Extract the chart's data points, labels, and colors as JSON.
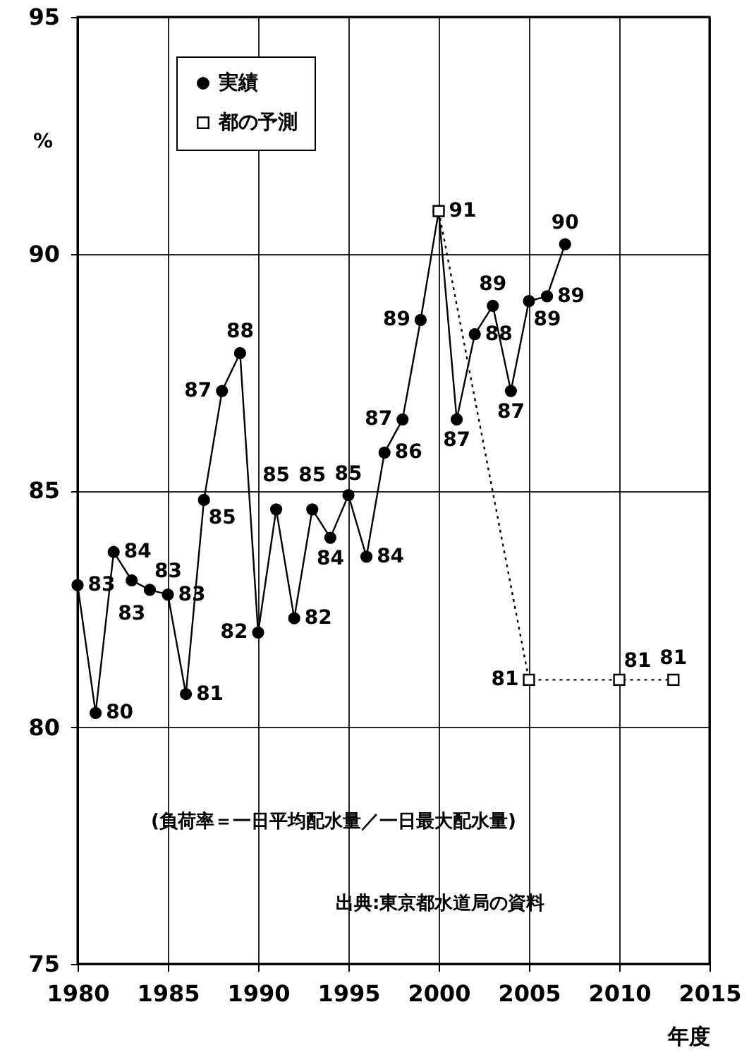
{
  "chart_data": {
    "type": "line",
    "ylabel": "%",
    "xlabel": "年度",
    "x": [
      1980,
      1981,
      1982,
      1983,
      1984,
      1985,
      1986,
      1987,
      1988,
      1989,
      1990,
      1991,
      1992,
      1993,
      1994,
      1995,
      1996,
      1997,
      1998,
      1999,
      2000,
      2001,
      2002,
      2003,
      2004,
      2005,
      2006,
      2007
    ],
    "series": [
      {
        "name": "実績",
        "color": "#000000",
        "marker": "circle",
        "line_style": "solid",
        "values": [
          83.0,
          80.3,
          83.7,
          83.1,
          82.9,
          82.8,
          80.7,
          84.8,
          87.1,
          87.9,
          82.0,
          84.6,
          82.3,
          84.6,
          84.0,
          84.9,
          83.6,
          85.8,
          86.5,
          88.6,
          90.9,
          86.5,
          88.3,
          88.9,
          87.1,
          89.0,
          89.1,
          90.2
        ],
        "value_labels": [
          "83",
          "80",
          "84",
          "83",
          "83",
          "83",
          "81",
          "85",
          "87",
          "88",
          "82",
          "85",
          "82",
          "85",
          "84",
          "85",
          "84",
          "86",
          "87",
          "89",
          null,
          "87",
          "88",
          "89",
          "87",
          "89",
          "89",
          "90"
        ]
      },
      {
        "name": "都の予測",
        "color": "#000000",
        "marker": "square",
        "line_style": "dotted",
        "x": [
          2000,
          2005,
          2010,
          2013
        ],
        "values": [
          90.9,
          81.0,
          81.0,
          81.0
        ],
        "value_labels": [
          "91",
          "81",
          "81",
          "81"
        ]
      }
    ],
    "xlim": [
      1980,
      2015
    ],
    "xticks": [
      1980,
      1985,
      1990,
      1995,
      2000,
      2005,
      2010,
      2015
    ],
    "ylim": [
      75,
      95
    ],
    "yticks": [
      75,
      80,
      85,
      90,
      95
    ],
    "grid": true,
    "legend": "top left",
    "annotations": [
      "(負荷率＝一日平均配水量／一日最大配水量)",
      "出典:東京都水道局の資料"
    ]
  }
}
